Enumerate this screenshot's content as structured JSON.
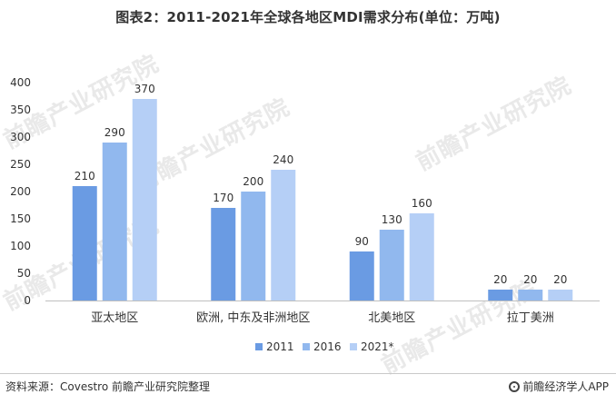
{
  "title": "图表2：2011-2021年全球各地区MDI需求分布(单位：万吨)",
  "footer": {
    "source": "资料来源：Covestro 前瞻产业研究院整理",
    "brand": "前瞻经济学人APP"
  },
  "watermark": "前瞻产业研究院",
  "colors": {
    "series_2011": "#6a9be3",
    "series_2016": "#91b8ee",
    "series_2021": "#b5cff6",
    "axis": "#bfbfbf",
    "text": "#333333"
  },
  "chart_data": {
    "type": "bar",
    "title": "图表2：2011-2021年全球各地区MDI需求分布(单位：万吨)",
    "xlabel": "",
    "ylabel": "",
    "categories": [
      "亚太地区",
      "欧洲, 中东及非洲地区",
      "北美地区",
      "拉丁美洲"
    ],
    "series": [
      {
        "name": "2011",
        "values": [
          210,
          170,
          90,
          20
        ]
      },
      {
        "name": "2016",
        "values": [
          290,
          200,
          130,
          20
        ]
      },
      {
        "name": "2021*",
        "values": [
          370,
          240,
          160,
          20
        ]
      }
    ],
    "yticks": [
      "0",
      "50",
      "100",
      "150",
      "200",
      "250",
      "300",
      "350",
      "400"
    ],
    "ylim": [
      0,
      400
    ],
    "grid": false,
    "legend_position": "bottom-center",
    "data_labels": true
  }
}
